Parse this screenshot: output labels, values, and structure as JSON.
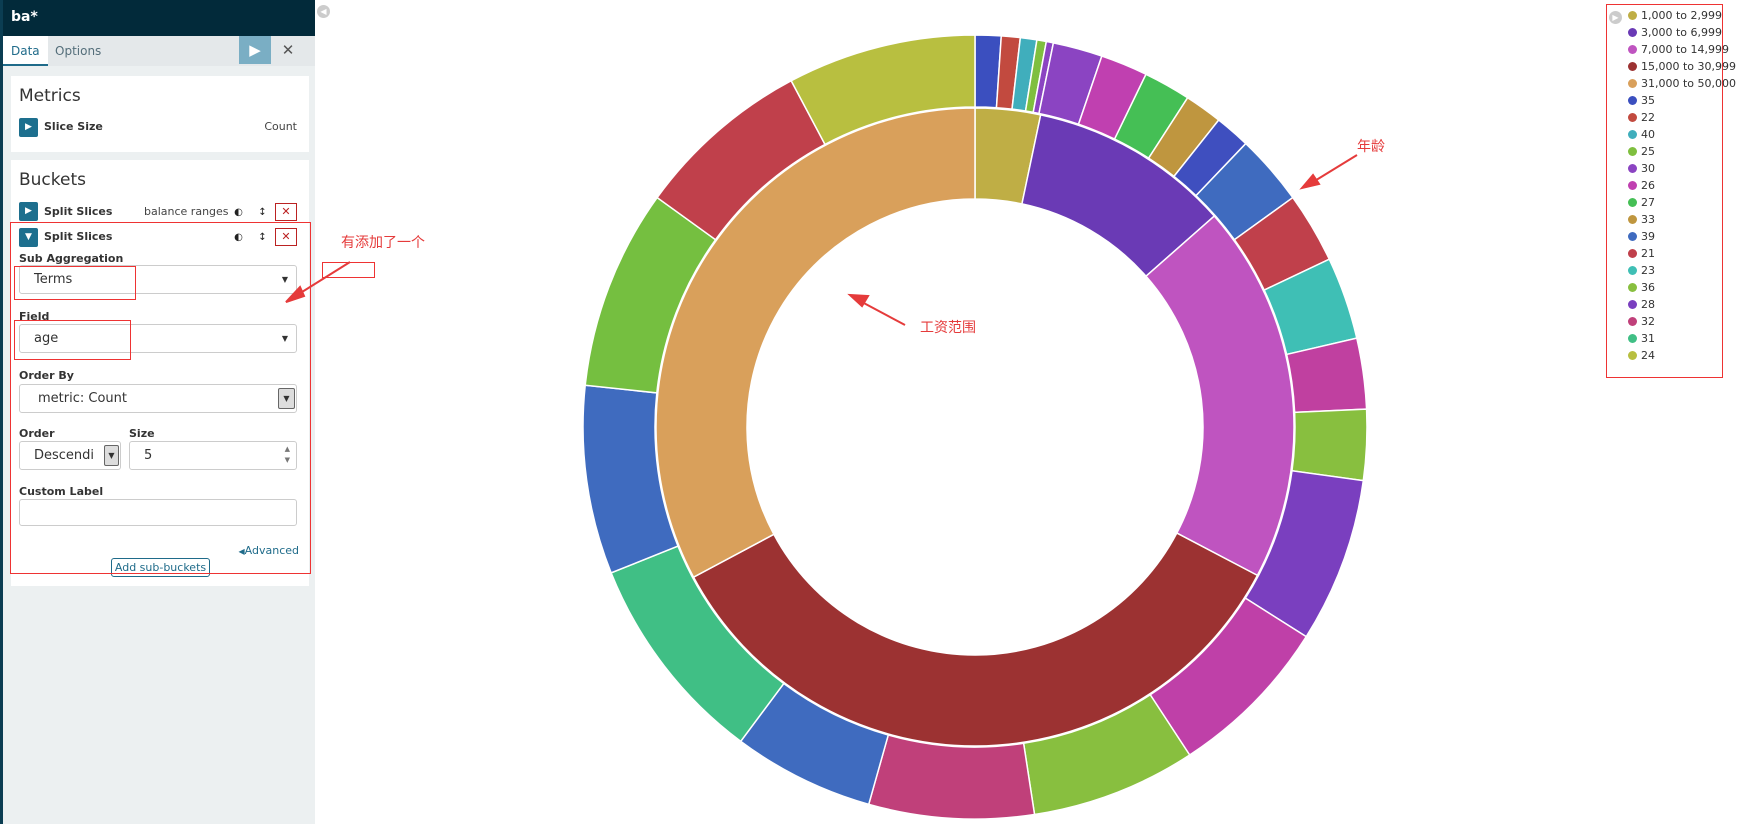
{
  "app": {
    "title": "ba*"
  },
  "tabs": [
    {
      "label": "Data"
    },
    {
      "label": "Options"
    }
  ],
  "toolbar": {
    "apply_icon": "play-icon",
    "discard_icon": "close-icon"
  },
  "metrics": {
    "heading": "Metrics",
    "item_label": "Slice Size",
    "item_value": "Count"
  },
  "buckets": {
    "heading": "Buckets",
    "bucket1": {
      "label": "Split Slices",
      "summary": "balance ranges"
    },
    "bucket2": {
      "label": "Split Slices"
    },
    "sub_aggregation": {
      "label": "Sub Aggregation",
      "value": "Terms"
    },
    "field": {
      "label": "Field",
      "value": "age"
    },
    "order_by": {
      "label": "Order By",
      "value": "metric: Count"
    },
    "order": {
      "label": "Order",
      "value": "Descendi"
    },
    "size": {
      "label": "Size",
      "value": "5"
    },
    "custom_label": {
      "label": "Custom Label",
      "value": ""
    },
    "advanced_link": "Advanced",
    "add_sub_buckets": "Add sub-buckets"
  },
  "annotations": {
    "added": "有添加了一个",
    "salary_range": "工资范围",
    "age": "年龄"
  },
  "chart_data": {
    "type": "pie",
    "inner_ring": {
      "field": "balance ranges",
      "slices": [
        {
          "label": "1,000 to 2,999",
          "value": 3.3,
          "color": "#bfae45"
        },
        {
          "label": "3,000 to 6,999",
          "value": 10.2,
          "color": "#6a3ab5"
        },
        {
          "label": "7,000 to 14,999",
          "value": 19.2,
          "color": "#bf54c0"
        },
        {
          "label": "15,000 to 30,999",
          "value": 34.5,
          "color": "#9c3232"
        },
        {
          "label": "31,000 to 50,000",
          "value": 32.8,
          "color": "#d9a05b"
        }
      ]
    },
    "outer_ring": {
      "field": "age",
      "slices": [
        {
          "label": "35",
          "value": 1.1,
          "color": "#3b4fbf"
        },
        {
          "label": "22",
          "value": 0.8,
          "color": "#c24a3f"
        },
        {
          "label": "40",
          "value": 0.7,
          "color": "#40aebc"
        },
        {
          "label": "25",
          "value": 0.4,
          "color": "#7fbf3f"
        },
        {
          "label": "30",
          "value": 0.3,
          "color": "#8b44c2"
        },
        {
          "label": "26",
          "value": 2.1,
          "color": "#8b44c2"
        },
        {
          "label": "27",
          "value": 2.0,
          "color": "#c040b0"
        },
        {
          "label": "33",
          "value": 2.0,
          "color": "#45bf55"
        },
        {
          "label": "39",
          "value": 1.6,
          "color": "#bf963f"
        },
        {
          "label": "21",
          "value": 1.5,
          "color": "#3f4fbf"
        },
        {
          "label": "23",
          "value": 3.0,
          "color": "#3f6bbf"
        },
        {
          "label": "36",
          "value": 3.0,
          "color": "#c0404b"
        },
        {
          "label": "28",
          "value": 3.5,
          "color": "#3fbfb5"
        },
        {
          "label": "32",
          "value": 3.0,
          "color": "#c040a0"
        },
        {
          "label": "31",
          "value": 3.0,
          "color": "#88bf3f"
        },
        {
          "label": "24",
          "value": 7.0,
          "color": "#7a3fbf"
        },
        {
          "label": "35",
          "value": 7.0,
          "color": "#bf40a8"
        },
        {
          "label": "22",
          "value": 7.0,
          "color": "#88bf3f"
        },
        {
          "label": "40",
          "value": 7.0,
          "color": "#c0407a"
        },
        {
          "label": "25",
          "value": 6.0,
          "color": "#3f6bbf"
        },
        {
          "label": "30",
          "value": 9.0,
          "color": "#40bf85"
        },
        {
          "label": "26",
          "value": 8.0,
          "color": "#3f6bbf"
        },
        {
          "label": "27",
          "value": 8.5,
          "color": "#75bf40"
        },
        {
          "label": "33",
          "value": 7.5,
          "color": "#c0404b"
        },
        {
          "label": "39",
          "value": 8.0,
          "color": "#b8bf40"
        }
      ]
    }
  },
  "legend": {
    "toggle_icon": "chevron-right-icon",
    "items": [
      {
        "label": "1,000 to 2,999",
        "color": "#bfae45"
      },
      {
        "label": "3,000 to 6,999",
        "color": "#6a3ab5"
      },
      {
        "label": "7,000 to 14,999",
        "color": "#bf54c0"
      },
      {
        "label": "15,000 to 30,999",
        "color": "#9c3232"
      },
      {
        "label": "31,000 to 50,000",
        "color": "#d9a05b"
      },
      {
        "label": "35",
        "color": "#3b4fbf"
      },
      {
        "label": "22",
        "color": "#c24a3f"
      },
      {
        "label": "40",
        "color": "#40aebc"
      },
      {
        "label": "25",
        "color": "#7fbf3f"
      },
      {
        "label": "30",
        "color": "#8b44c2"
      },
      {
        "label": "26",
        "color": "#c040b0"
      },
      {
        "label": "27",
        "color": "#45bf55"
      },
      {
        "label": "33",
        "color": "#bf963f"
      },
      {
        "label": "39",
        "color": "#3f6bbf"
      },
      {
        "label": "21",
        "color": "#c0404b"
      },
      {
        "label": "23",
        "color": "#3fbfb5"
      },
      {
        "label": "36",
        "color": "#88bf3f"
      },
      {
        "label": "28",
        "color": "#7a3fbf"
      },
      {
        "label": "32",
        "color": "#c0407a"
      },
      {
        "label": "31",
        "color": "#40bf85"
      },
      {
        "label": "24",
        "color": "#b8bf40"
      }
    ]
  }
}
